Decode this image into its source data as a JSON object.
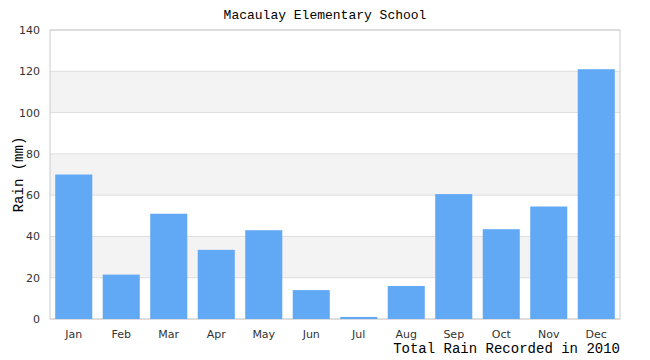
{
  "chart_data": {
    "type": "bar",
    "title": "Macaulay Elementary School",
    "ylabel": "Rain (mm)",
    "xlabel": "Total Rain Recorded in 2010",
    "categories": [
      "Jan",
      "Feb",
      "Mar",
      "Apr",
      "May",
      "Jun",
      "Jul",
      "Aug",
      "Sep",
      "Oct",
      "Nov",
      "Dec"
    ],
    "values": [
      70,
      21.5,
      51,
      33.5,
      43,
      14,
      1,
      16,
      60.5,
      43.5,
      54.5,
      121
    ],
    "color": "#61a8f5",
    "ylim": [
      0,
      140
    ],
    "yticks": [
      0,
      20,
      40,
      60,
      80,
      100,
      120,
      140
    ],
    "grid": true
  }
}
